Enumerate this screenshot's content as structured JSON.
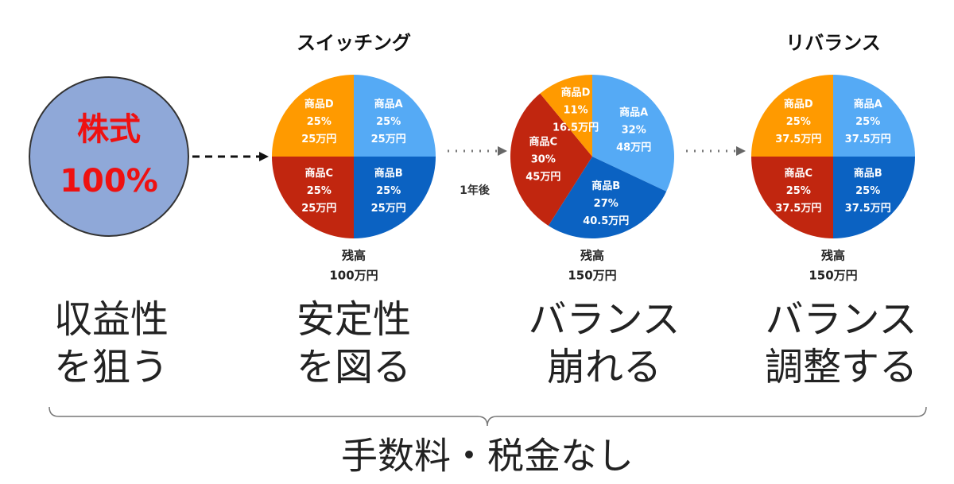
{
  "source": {
    "line1": "株式",
    "line2": "100%"
  },
  "pies": [
    {
      "type": "pie",
      "title": "スイッチング",
      "categories": [
        "商品A",
        "商品B",
        "商品C",
        "商品D"
      ],
      "values": [
        25,
        25,
        25,
        25
      ],
      "value_labels": [
        "25%",
        "25%",
        "25%",
        "25%"
      ],
      "amounts": [
        "25万円",
        "25万円",
        "25万円",
        "25万円"
      ],
      "colors": [
        "#55aaf5",
        "#0b62c2",
        "#c1260f",
        "#ff9a00"
      ],
      "balance_label": "残高",
      "balance": "100万円"
    },
    {
      "type": "pie",
      "categories": [
        "商品A",
        "商品B",
        "商品C",
        "商品D"
      ],
      "values": [
        32,
        27,
        30,
        11
      ],
      "value_labels": [
        "32%",
        "27%",
        "30%",
        "11%"
      ],
      "amounts": [
        "48万円",
        "40.5万円",
        "45万円",
        "16.5万円"
      ],
      "colors": [
        "#55aaf5",
        "#0b62c2",
        "#c1260f",
        "#ff9a00"
      ],
      "balance_label": "残高",
      "balance": "150万円"
    },
    {
      "type": "pie",
      "title": "リバランス",
      "categories": [
        "商品A",
        "商品B",
        "商品C",
        "商品D"
      ],
      "values": [
        25,
        25,
        25,
        25
      ],
      "value_labels": [
        "25%",
        "25%",
        "25%",
        "25%"
      ],
      "amounts": [
        "37.5万円",
        "37.5万円",
        "37.5万円",
        "37.5万円"
      ],
      "colors": [
        "#55aaf5",
        "#0b62c2",
        "#c1260f",
        "#ff9a00"
      ],
      "balance_label": "残高",
      "balance": "150万円"
    }
  ],
  "transition_label": "1年後",
  "captions": [
    [
      "収益性",
      "を狙う"
    ],
    [
      "安定性",
      "を図る"
    ],
    [
      "バランス",
      "崩れる"
    ],
    [
      "バランス",
      "調整する"
    ]
  ],
  "footer": "手数料・税金なし"
}
